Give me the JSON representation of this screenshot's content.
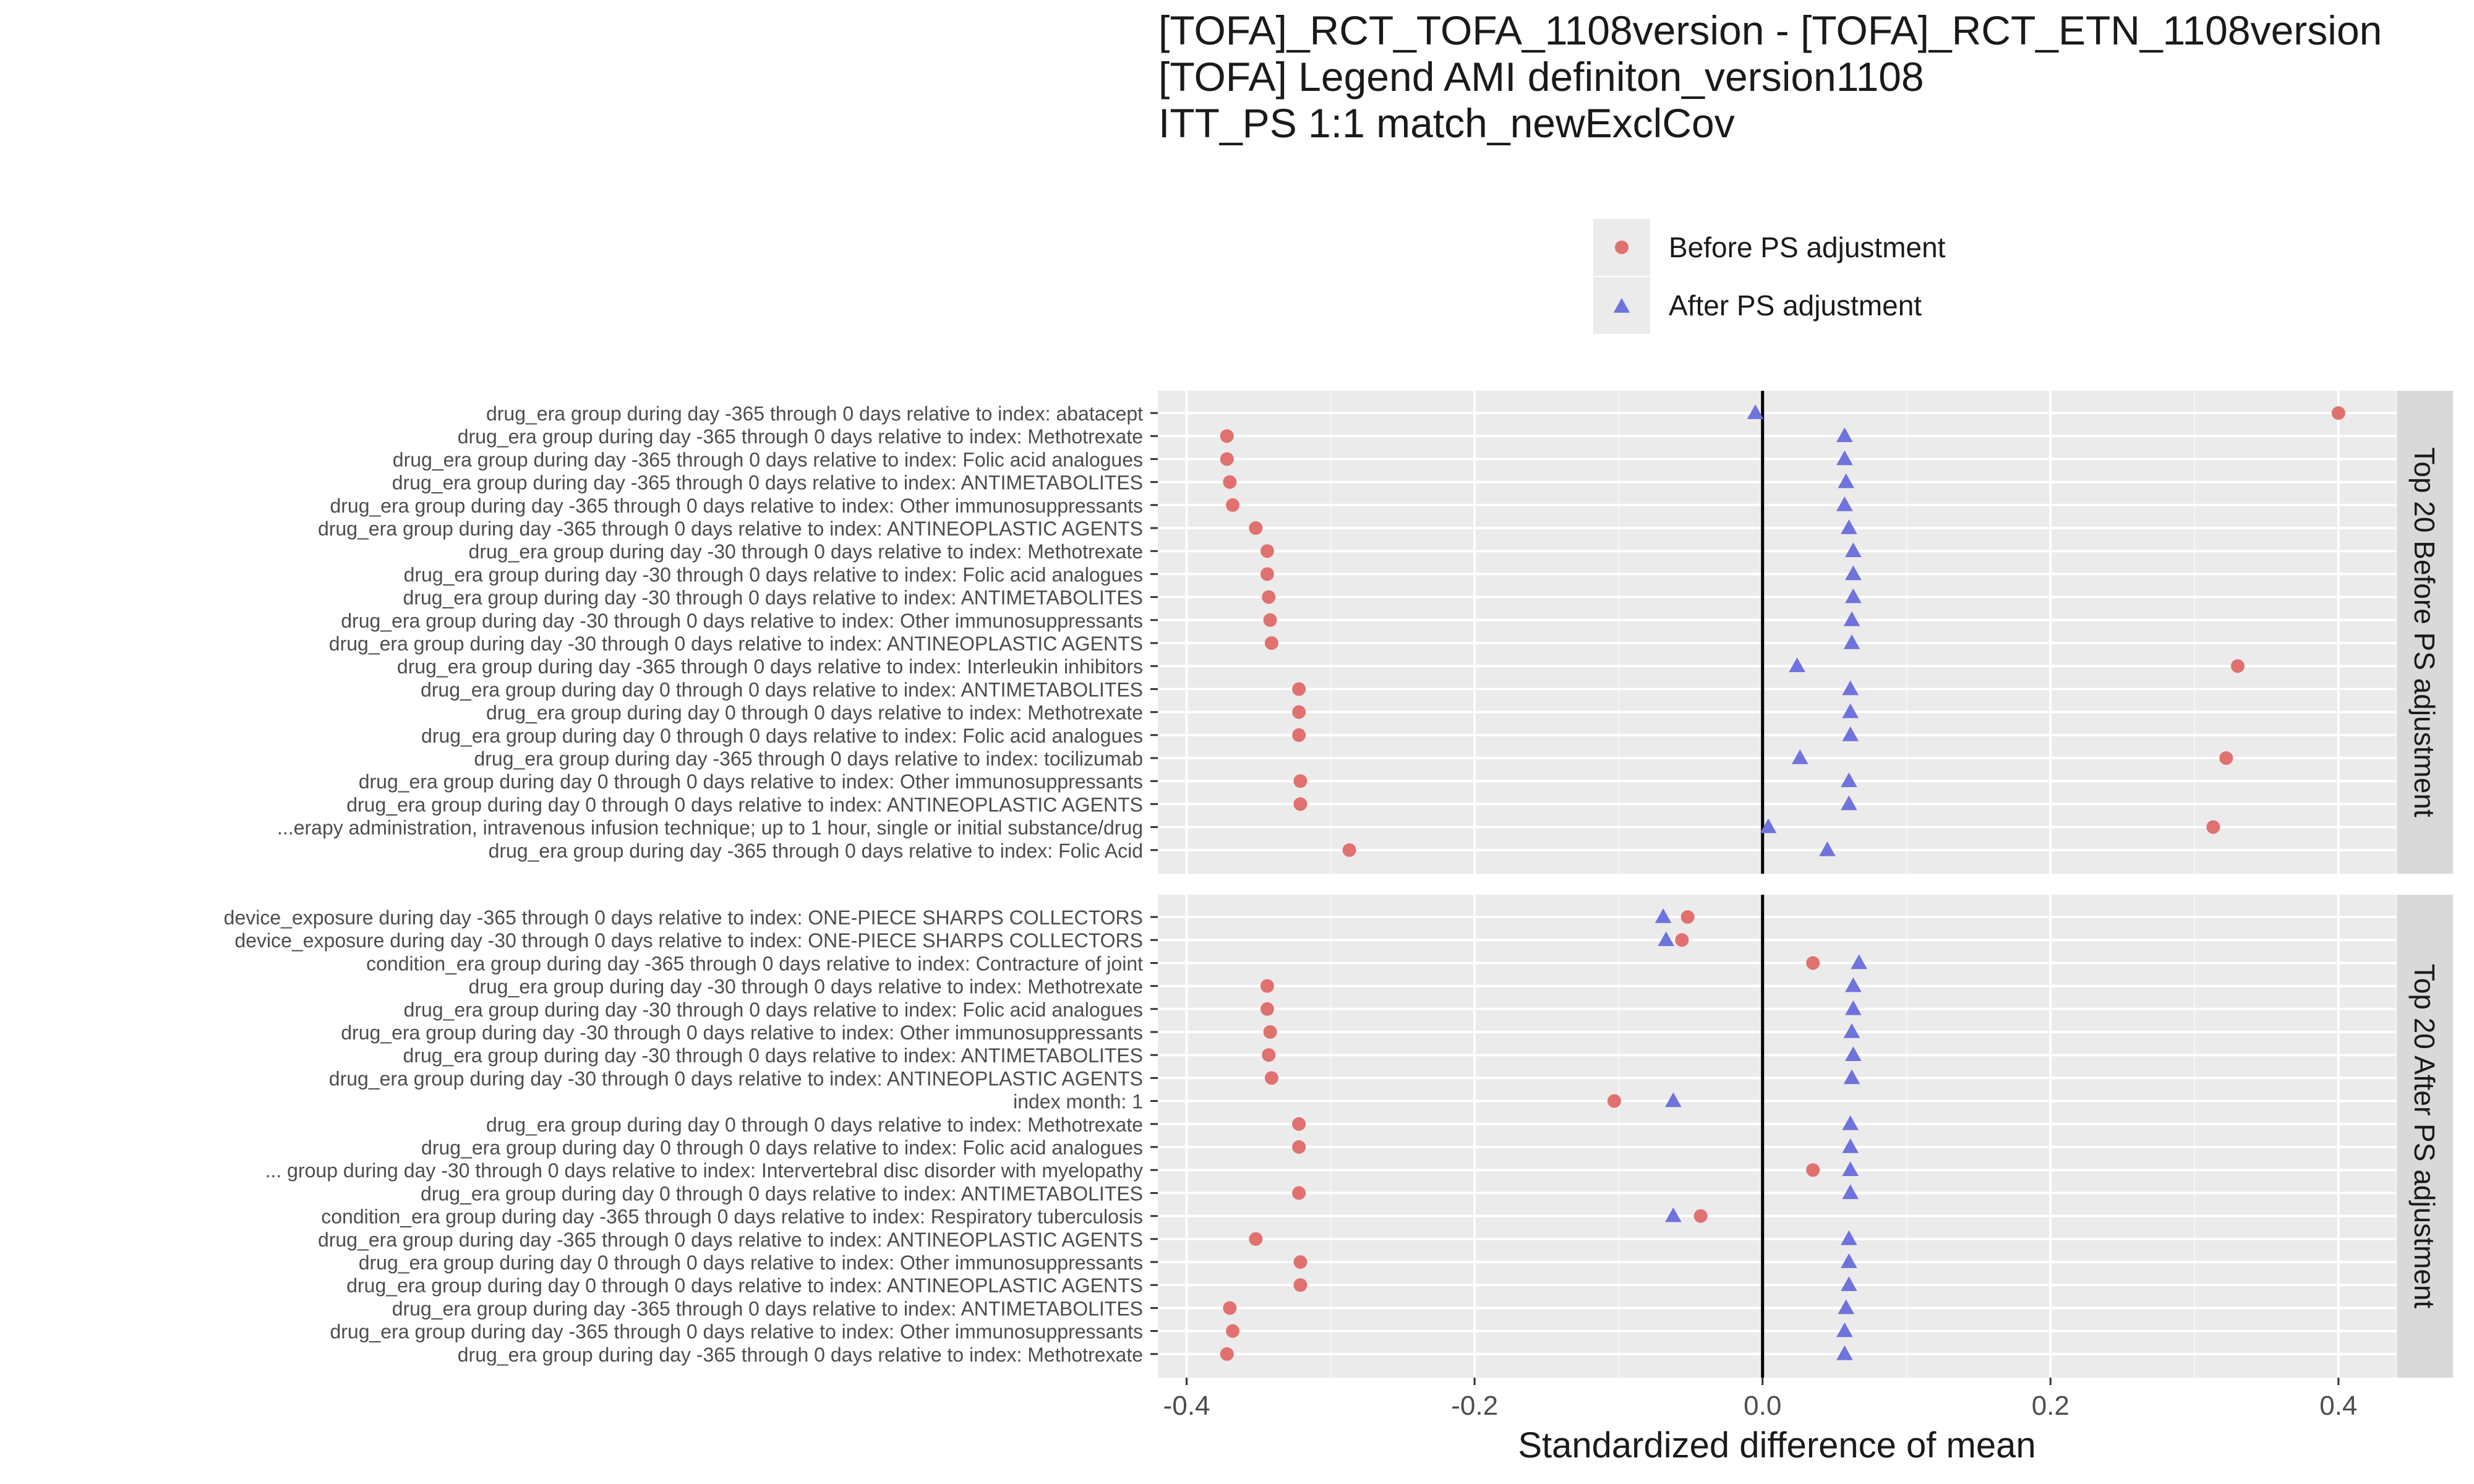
{
  "chart_data": {
    "type": "scatter",
    "title_lines": [
      "[TOFA]_RCT_TOFA_1108version - [TOFA]_RCT_ETN_1108version",
      "[TOFA] Legend AMI definiton_version1108",
      "ITT_PS 1:1 match_newExclCov"
    ],
    "xlabel": "Standardized difference of mean",
    "ylabel": "",
    "xlim": [
      -0.42,
      0.44
    ],
    "x_ticks": [
      -0.4,
      -0.2,
      0.0,
      0.2,
      0.4
    ],
    "x_tick_labels": [
      "-0.4",
      "-0.2",
      "0.0",
      "0.2",
      "0.4"
    ],
    "grid": true,
    "reference_line": 0,
    "legend_position": "top",
    "legend": [
      {
        "name": "Before PS adjustment",
        "shape": "circle",
        "color": "#E0716F"
      },
      {
        "name": "After PS adjustment",
        "shape": "triangle",
        "color": "#6F73DC"
      }
    ],
    "panels": [
      {
        "strip_label": "Top 20 Before PS adjustment",
        "rows": [
          {
            "label": "drug_era group during day -365 through 0 days relative to index: abatacept",
            "before": 0.4,
            "after": -0.005
          },
          {
            "label": "drug_era group during day -365 through 0 days relative to index: Methotrexate",
            "before": -0.372,
            "after": 0.057
          },
          {
            "label": "drug_era group during day -365 through 0 days relative to index: Folic acid analogues",
            "before": -0.372,
            "after": 0.057
          },
          {
            "label": "drug_era group during day -365 through 0 days relative to index: ANTIMETABOLITES",
            "before": -0.37,
            "after": 0.058
          },
          {
            "label": "drug_era group during day -365 through 0 days relative to index: Other immunosuppressants",
            "before": -0.368,
            "after": 0.057
          },
          {
            "label": "drug_era group during day -365 through 0 days relative to index: ANTINEOPLASTIC AGENTS",
            "before": -0.352,
            "after": 0.06
          },
          {
            "label": "drug_era group during day -30 through 0 days relative to index: Methotrexate",
            "before": -0.344,
            "after": 0.063
          },
          {
            "label": "drug_era group during day -30 through 0 days relative to index: Folic acid analogues",
            "before": -0.344,
            "after": 0.063
          },
          {
            "label": "drug_era group during day -30 through 0 days relative to index: ANTIMETABOLITES",
            "before": -0.343,
            "after": 0.063
          },
          {
            "label": "drug_era group during day -30 through 0 days relative to index: Other immunosuppressants",
            "before": -0.342,
            "after": 0.062
          },
          {
            "label": "drug_era group during day -30 through 0 days relative to index: ANTINEOPLASTIC AGENTS",
            "before": -0.341,
            "after": 0.062
          },
          {
            "label": "drug_era group during day -365 through 0 days relative to index: Interleukin inhibitors",
            "before": 0.33,
            "after": 0.024
          },
          {
            "label": "drug_era group during day 0 through 0 days relative to index: ANTIMETABOLITES",
            "before": -0.322,
            "after": 0.061
          },
          {
            "label": "drug_era group during day 0 through 0 days relative to index: Methotrexate",
            "before": -0.322,
            "after": 0.061
          },
          {
            "label": "drug_era group during day 0 through 0 days relative to index: Folic acid analogues",
            "before": -0.322,
            "after": 0.061
          },
          {
            "label": "drug_era group during day -365 through 0 days relative to index: tocilizumab",
            "before": 0.322,
            "after": 0.026
          },
          {
            "label": "drug_era group during day 0 through 0 days relative to index: Other immunosuppressants",
            "before": -0.321,
            "after": 0.06
          },
          {
            "label": "drug_era group during day 0 through 0 days relative to index: ANTINEOPLASTIC AGENTS",
            "before": -0.321,
            "after": 0.06
          },
          {
            "label": "...erapy administration, intravenous infusion technique; up to 1 hour, single or initial substance/drug",
            "before": 0.313,
            "after": 0.004
          },
          {
            "label": "drug_era group during day -365 through 0 days relative to index: Folic Acid",
            "before": -0.287,
            "after": 0.045
          }
        ]
      },
      {
        "strip_label": "Top 20 After PS adjustment",
        "rows": [
          {
            "label": "device_exposure during day -365 through 0 days relative to index: ONE-PIECE SHARPS COLLECTORS",
            "before": -0.052,
            "after": -0.069
          },
          {
            "label": "device_exposure during day -30 through 0 days relative to index: ONE-PIECE SHARPS COLLECTORS",
            "before": -0.056,
            "after": -0.067
          },
          {
            "label": "condition_era group during day -365 through 0 days relative to index: Contracture of joint",
            "before": 0.035,
            "after": 0.067
          },
          {
            "label": "drug_era group during day -30 through 0 days relative to index: Methotrexate",
            "before": -0.344,
            "after": 0.063
          },
          {
            "label": "drug_era group during day -30 through 0 days relative to index: Folic acid analogues",
            "before": -0.344,
            "after": 0.063
          },
          {
            "label": "drug_era group during day -30 through 0 days relative to index: Other immunosuppressants",
            "before": -0.342,
            "after": 0.062
          },
          {
            "label": "drug_era group during day -30 through 0 days relative to index: ANTIMETABOLITES",
            "before": -0.343,
            "after": 0.063
          },
          {
            "label": "drug_era group during day -30 through 0 days relative to index: ANTINEOPLASTIC AGENTS",
            "before": -0.341,
            "after": 0.062
          },
          {
            "label": "index month: 1",
            "before": -0.103,
            "after": -0.062
          },
          {
            "label": "drug_era group during day 0 through 0 days relative to index: Methotrexate",
            "before": -0.322,
            "after": 0.061
          },
          {
            "label": "drug_era group during day 0 through 0 days relative to index: Folic acid analogues",
            "before": -0.322,
            "after": 0.061
          },
          {
            "label": "... group during day -30 through 0 days relative to index: Intervertebral disc disorder with myelopathy",
            "before": 0.035,
            "after": 0.061
          },
          {
            "label": "drug_era group during day 0 through 0 days relative to index: ANTIMETABOLITES",
            "before": -0.322,
            "after": 0.061
          },
          {
            "label": "condition_era group during day -365 through 0 days relative to index: Respiratory tuberculosis",
            "before": -0.043,
            "after": -0.062
          },
          {
            "label": "drug_era group during day -365 through 0 days relative to index: ANTINEOPLASTIC AGENTS",
            "before": -0.352,
            "after": 0.06
          },
          {
            "label": "drug_era group during day 0 through 0 days relative to index: Other immunosuppressants",
            "before": -0.321,
            "after": 0.06
          },
          {
            "label": "drug_era group during day 0 through 0 days relative to index: ANTINEOPLASTIC AGENTS",
            "before": -0.321,
            "after": 0.06
          },
          {
            "label": "drug_era group during day -365 through 0 days relative to index: ANTIMETABOLITES",
            "before": -0.37,
            "after": 0.058
          },
          {
            "label": "drug_era group during day -365 through 0 days relative to index: Other immunosuppressants",
            "before": -0.368,
            "after": 0.057
          },
          {
            "label": "drug_era group during day -365 through 0 days relative to index: Methotrexate",
            "before": -0.372,
            "after": 0.057
          }
        ]
      }
    ]
  }
}
